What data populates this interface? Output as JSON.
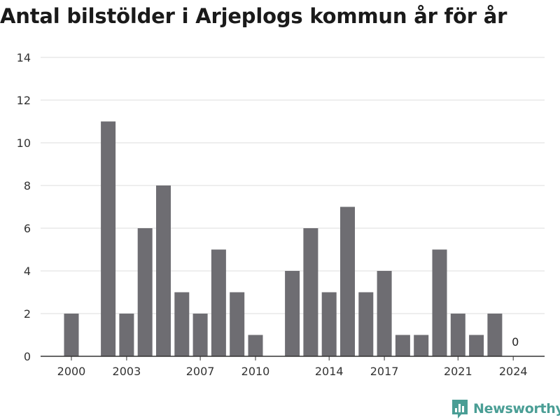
{
  "colors": {
    "bar": "#6e6d72",
    "grid": "#dddddd",
    "axis": "#333333",
    "brand": "#4a9e95"
  },
  "brand": {
    "name": "Newsworthy",
    "icon": "bar-chart-logo-icon"
  },
  "chart_data": {
    "type": "bar",
    "title": "Antal bilstölder i Arjeplogs kommun år för år",
    "xlabel": "",
    "ylabel": "",
    "ylim": [
      0,
      14
    ],
    "yticks": [
      0,
      2,
      4,
      6,
      8,
      10,
      12,
      14
    ],
    "grid": true,
    "categories": [
      2000,
      2001,
      2002,
      2003,
      2004,
      2005,
      2006,
      2007,
      2008,
      2009,
      2010,
      2011,
      2012,
      2013,
      2014,
      2015,
      2016,
      2017,
      2018,
      2019,
      2020,
      2021,
      2022,
      2023,
      2024
    ],
    "values": [
      2,
      0,
      11,
      2,
      6,
      8,
      3,
      2,
      5,
      3,
      1,
      0,
      4,
      6,
      3,
      7,
      3,
      4,
      1,
      1,
      5,
      2,
      1,
      2,
      0
    ],
    "xtick_labels": [
      "2000",
      "2003",
      "2007",
      "2010",
      "2014",
      "2017",
      "2021",
      "2024"
    ],
    "annotations": [
      {
        "category": 2024,
        "text": "0"
      }
    ]
  }
}
